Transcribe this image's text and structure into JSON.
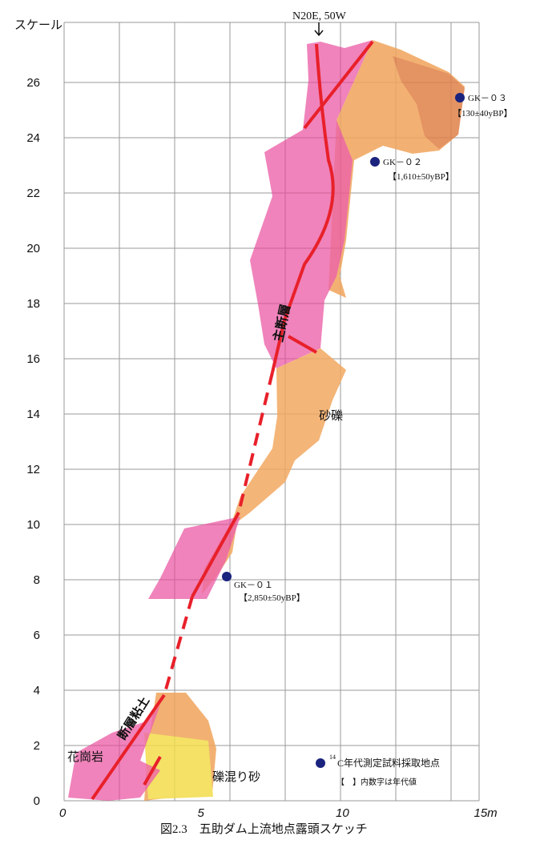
{
  "scale_label": "スケール",
  "y_ticks": [
    "0",
    "2",
    "4",
    "6",
    "8",
    "10",
    "12",
    "14",
    "16",
    "18",
    "20",
    "22",
    "24",
    "26"
  ],
  "x_ticks": [
    "0",
    "5",
    "10",
    "15m"
  ],
  "orientation": "N20E, 50W",
  "samples": [
    {
      "id": "GK－０３",
      "age": "【130±40yBP】"
    },
    {
      "id": "GK－０２",
      "age": "【1,610±50yBP】"
    },
    {
      "id": "GK－０１",
      "age": "【2,850±50yBP】"
    }
  ],
  "units": {
    "main_fault": "主断層",
    "gravel": "砂礫",
    "granite": "花崗岩",
    "fault_clay": "断層粘土",
    "gravelly_sand": "礫混り砂"
  },
  "legend": {
    "mass": "14",
    "point": "C年代測定試料採取地点",
    "note": "【　】内数字は年代値"
  },
  "caption": "図2.3　五助ダム上流地点露頭スケッチ"
}
